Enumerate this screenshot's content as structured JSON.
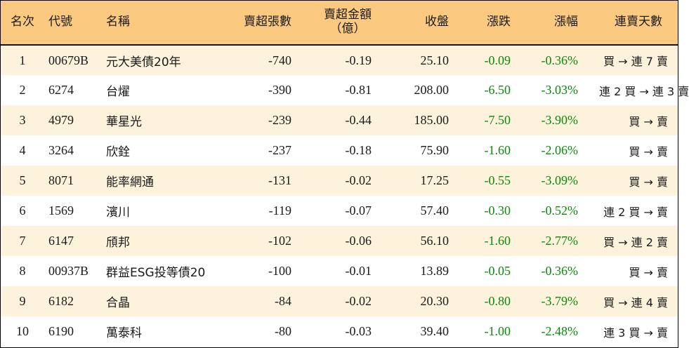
{
  "table": {
    "headers": {
      "rank": "名次",
      "code": "代號",
      "name": "名稱",
      "net_sell_sheets": "賣超張數",
      "net_sell_amount_line1": "賣超金額",
      "net_sell_amount_line2": "（億）",
      "close": "收盤",
      "change": "漲跌",
      "change_pct": "漲幅",
      "consecutive_days": "連賣天數"
    },
    "rows": [
      {
        "rank": "1",
        "code": "00679B",
        "name": "元大美債20年",
        "net_sell_sheets": "-740",
        "net_sell_amount": "-0.19",
        "close": "25.10",
        "change": "-0.09",
        "change_pct": "-0.36%",
        "consecutive_days": "買 → 連 7 賣"
      },
      {
        "rank": "2",
        "code": "6274",
        "name": "台燿",
        "net_sell_sheets": "-390",
        "net_sell_amount": "-0.81",
        "close": "208.00",
        "change": "-6.50",
        "change_pct": "-3.03%",
        "consecutive_days": "連 2 買 → 連 3 賣"
      },
      {
        "rank": "3",
        "code": "4979",
        "name": "華星光",
        "net_sell_sheets": "-239",
        "net_sell_amount": "-0.44",
        "close": "185.00",
        "change": "-7.50",
        "change_pct": "-3.90%",
        "consecutive_days": "買 → 賣"
      },
      {
        "rank": "4",
        "code": "3264",
        "name": "欣銓",
        "net_sell_sheets": "-237",
        "net_sell_amount": "-0.18",
        "close": "75.90",
        "change": "-1.60",
        "change_pct": "-2.06%",
        "consecutive_days": "買 → 賣"
      },
      {
        "rank": "5",
        "code": "8071",
        "name": "能率網通",
        "net_sell_sheets": "-131",
        "net_sell_amount": "-0.02",
        "close": "17.25",
        "change": "-0.55",
        "change_pct": "-3.09%",
        "consecutive_days": "買 → 賣"
      },
      {
        "rank": "6",
        "code": "1569",
        "name": "濱川",
        "net_sell_sheets": "-119",
        "net_sell_amount": "-0.07",
        "close": "57.40",
        "change": "-0.30",
        "change_pct": "-0.52%",
        "consecutive_days": "連 2 買 → 賣"
      },
      {
        "rank": "7",
        "code": "6147",
        "name": "頎邦",
        "net_sell_sheets": "-102",
        "net_sell_amount": "-0.06",
        "close": "56.10",
        "change": "-1.60",
        "change_pct": "-2.77%",
        "consecutive_days": "買 → 連 2 賣"
      },
      {
        "rank": "8",
        "code": "00937B",
        "name": "群益ESG投等債20",
        "net_sell_sheets": "-100",
        "net_sell_amount": "-0.01",
        "close": "13.89",
        "change": "-0.05",
        "change_pct": "-0.36%",
        "consecutive_days": "買 → 賣"
      },
      {
        "rank": "9",
        "code": "6182",
        "name": "合晶",
        "net_sell_sheets": "-84",
        "net_sell_amount": "-0.02",
        "close": "20.30",
        "change": "-0.80",
        "change_pct": "-3.79%",
        "consecutive_days": "買 → 連 4 賣"
      },
      {
        "rank": "10",
        "code": "6190",
        "name": "萬泰科",
        "net_sell_sheets": "-80",
        "net_sell_amount": "-0.03",
        "close": "39.40",
        "change": "-1.00",
        "change_pct": "-2.48%",
        "consecutive_days": "連 3 買 → 賣"
      }
    ]
  },
  "colors": {
    "header_bg": "#fcc980",
    "row_stripe_bg": "#fdf3dc",
    "negative_change": "#0a8a0a",
    "text": "#1a1a1a"
  }
}
